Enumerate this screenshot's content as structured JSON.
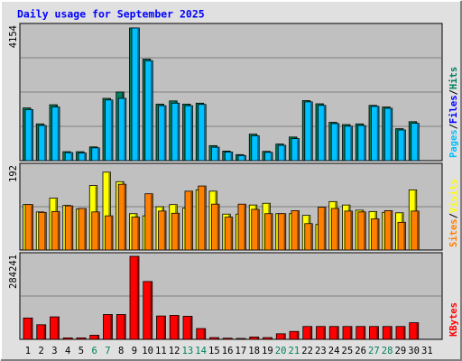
{
  "chart_data": {
    "type": "bar",
    "title": "Daily usage for September 2025",
    "days": [
      "1",
      "2",
      "3",
      "4",
      "5",
      "6",
      "7",
      "8",
      "9",
      "10",
      "11",
      "12",
      "13",
      "14",
      "15",
      "16",
      "17",
      "18",
      "19",
      "20",
      "21",
      "22",
      "23",
      "24",
      "25",
      "26",
      "27",
      "28",
      "29",
      "30",
      "31"
    ],
    "weekend_days": [
      "6",
      "7",
      "13",
      "14",
      "20",
      "21",
      "27",
      "28"
    ],
    "colors": {
      "hits": "#00805c",
      "files": "#0000ff",
      "pages": "#00c0ff",
      "visits": "#ffff00",
      "sites": "#ff8000",
      "kbytes": "#ff0000",
      "weekday_label": "#000000",
      "weekend_label": "#00805c",
      "title": "#0000ff",
      "plot_bg": "#c0c0c0",
      "frame_bg": "#e0e0e0"
    },
    "panels": [
      {
        "id": "hits",
        "ymax_label": "4154",
        "ymax": 4154,
        "legend": [
          {
            "text": "Pages",
            "color": "#00c0ff"
          },
          {
            "text": "Files",
            "color": "#0000ff"
          },
          {
            "text": "Hits",
            "color": "#00805c"
          }
        ],
        "series": [
          {
            "name": "Hits",
            "values": [
              1650,
              1150,
              1750,
              280,
              280,
              430,
              1950,
              2150,
              4154,
              3180,
              1770,
              1870,
              1770,
              1800,
              470,
              300,
              190,
              830,
              290,
              520,
              740,
              1880,
              1780,
              1200,
              1130,
              1150,
              1730,
              1680,
              1000,
              1220,
              null
            ]
          },
          {
            "name": "Pages",
            "values": [
              1600,
              1100,
              1680,
              250,
              240,
              400,
              1900,
              1950,
              4154,
              3130,
              1720,
              1800,
              1720,
              1760,
              420,
              270,
              160,
              780,
              260,
              480,
              690,
              1840,
              1730,
              1160,
              1080,
              1100,
              1700,
              1640,
              960,
              1170,
              null
            ]
          }
        ]
      },
      {
        "id": "visits",
        "ymax_label": "192",
        "ymax": 192,
        "legend": [
          {
            "text": "Sites",
            "color": "#ff8000"
          },
          {
            "text": "Visits",
            "color": "#ffff00"
          }
        ],
        "series": [
          {
            "name": "Visits",
            "values": [
              105,
              88,
              120,
              103,
              95,
              149,
              180,
              158,
              84,
              79,
              100,
              105,
              97,
              139,
              136,
              83,
              83,
              104,
              108,
              84,
              84,
              80,
              59,
              112,
              104,
              92,
              89,
              87,
              86,
              139,
              null
            ]
          },
          {
            "name": "Sites",
            "values": [
              105,
              87,
              89,
              102,
              96,
              88,
              79,
              152,
              76,
              130,
              90,
              85,
              136,
              148,
              106,
              76,
              106,
              94,
              84,
              84,
              91,
              61,
              99,
              96,
              90,
              88,
              72,
              91,
              64,
              90,
              null
            ]
          }
        ]
      },
      {
        "id": "kbytes",
        "ymax_label": "284241",
        "ymax": 284241,
        "legend": [
          {
            "text": "KBytes",
            "color": "#ff0000"
          }
        ],
        "series": [
          {
            "name": "KBytes",
            "values": [
              73000,
              50000,
              77000,
              5000,
              5000,
              14000,
              85000,
              85000,
              284241,
              198000,
              80000,
              82000,
              79000,
              37000,
              6000,
              4000,
              3000,
              8000,
              6000,
              19000,
              27000,
              44000,
              44000,
              44000,
              44000,
              44000,
              44000,
              44000,
              44000,
              57000,
              null
            ]
          }
        ]
      }
    ]
  }
}
